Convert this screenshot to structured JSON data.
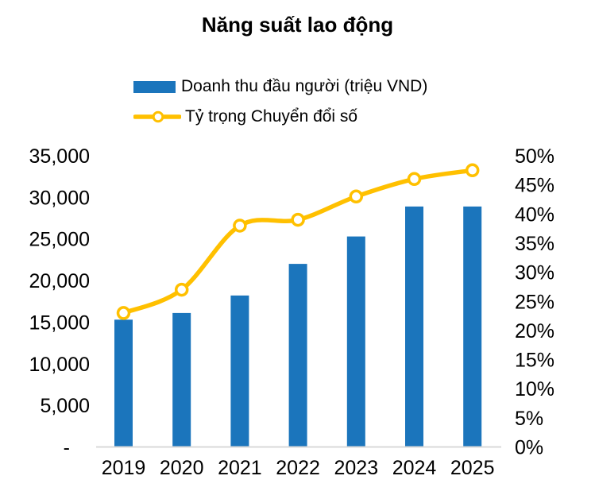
{
  "title": "Năng suất lao động",
  "legend": [
    {
      "label": "Doanh thu đầu người (triệu VND)",
      "type": "bar",
      "color": "#1B75BC"
    },
    {
      "label": "Tỷ trọng Chuyển đổi số",
      "type": "line",
      "color": "#FFC000",
      "marker_fill": "#FFFFFF"
    }
  ],
  "chart_data": {
    "type": "bar+line combo, dual axis",
    "title": "Năng suất lao động",
    "categories": [
      "2019",
      "2020",
      "2021",
      "2022",
      "2023",
      "2024",
      "2025"
    ],
    "series": [
      {
        "name": "Doanh thu đầu người (triệu VND)",
        "type": "bar",
        "axis": "left",
        "color": "#1B75BC",
        "values": [
          15300,
          16100,
          18200,
          22000,
          25300,
          28900,
          28900
        ]
      },
      {
        "name": "Tỷ trọng Chuyển đổi số",
        "type": "line",
        "axis": "right",
        "color": "#FFC000",
        "marker": "circle-white-fill",
        "smooth": true,
        "values_percent": [
          23,
          27,
          38,
          39,
          43,
          46,
          47.5
        ]
      }
    ],
    "left_axis": {
      "min": 0,
      "max": 35000,
      "step": 5000,
      "ticks": [
        {
          "label": "35,000",
          "value": 35000
        },
        {
          "label": "30,000",
          "value": 30000
        },
        {
          "label": "25,000",
          "value": 25000
        },
        {
          "label": "20,000",
          "value": 20000
        },
        {
          "label": "15,000",
          "value": 15000
        },
        {
          "label": "10,000",
          "value": 10000
        },
        {
          "label": "5,000",
          "value": 5000
        },
        {
          "label": "-",
          "value": 0
        }
      ]
    },
    "right_axis": {
      "min": 0,
      "max": 50,
      "step": 5,
      "ticks": [
        {
          "label": "50%",
          "value": 50
        },
        {
          "label": "45%",
          "value": 45
        },
        {
          "label": "40%",
          "value": 40
        },
        {
          "label": "35%",
          "value": 35
        },
        {
          "label": "30%",
          "value": 30
        },
        {
          "label": "25%",
          "value": 25
        },
        {
          "label": "20%",
          "value": 20
        },
        {
          "label": "15%",
          "value": 15
        },
        {
          "label": "10%",
          "value": 10
        },
        {
          "label": "5%",
          "value": 5
        },
        {
          "label": "0%",
          "value": 0
        }
      ]
    },
    "grid": false,
    "baseline_color": "#D9D9D9",
    "legend_position": "top-left-stacked"
  }
}
